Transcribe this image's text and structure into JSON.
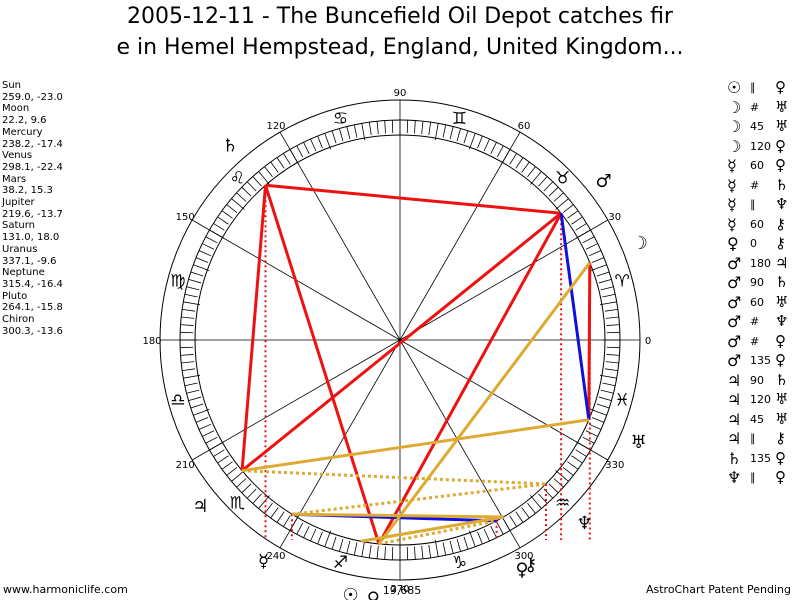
{
  "title": {
    "line1": "2005-12-11 - The Buncefield Oil Depot catches fir",
    "line2": "e in Hemel Hempstead, England, United Kingdom..."
  },
  "planets": [
    {
      "name": "Sun",
      "coords": "259.0, -23.0"
    },
    {
      "name": "Moon",
      "coords": "22.2, 9.6"
    },
    {
      "name": "Mercury",
      "coords": "238.2, -17.4"
    },
    {
      "name": "Venus",
      "coords": "298.1, -22.4"
    },
    {
      "name": "Mars",
      "coords": "38.2, 15.3"
    },
    {
      "name": "Jupiter",
      "coords": "219.6, -13.7"
    },
    {
      "name": "Saturn",
      "coords": "131.0, 18.0"
    },
    {
      "name": "Uranus",
      "coords": "337.1, -9.6"
    },
    {
      "name": "Neptune",
      "coords": "315.4, -16.4"
    },
    {
      "name": "Pluto",
      "coords": "264.1, -15.8"
    },
    {
      "name": "Chiron",
      "coords": "300.3, -13.6"
    }
  ],
  "aspects": [
    {
      "p1": "☉",
      "angle": "∥",
      "p2": "♀"
    },
    {
      "p1": "☽",
      "angle": "#",
      "p2": "♅"
    },
    {
      "p1": "☽",
      "angle": "45",
      "p2": "♅"
    },
    {
      "p1": "☽",
      "angle": "120",
      "p2": "♀"
    },
    {
      "p1": "☿",
      "angle": "60",
      "p2": "♀"
    },
    {
      "p1": "☿",
      "angle": "#",
      "p2": "♄"
    },
    {
      "p1": "☿",
      "angle": "∥",
      "p2": "♆"
    },
    {
      "p1": "☿",
      "angle": "60",
      "p2": "⚷"
    },
    {
      "p1": "♀",
      "angle": "0",
      "p2": "⚷"
    },
    {
      "p1": "♂",
      "angle": "180",
      "p2": "♃"
    },
    {
      "p1": "♂",
      "angle": "90",
      "p2": "♄"
    },
    {
      "p1": "♂",
      "angle": "60",
      "p2": "♅"
    },
    {
      "p1": "♂",
      "angle": "#",
      "p2": "♆"
    },
    {
      "p1": "♂",
      "angle": "#",
      "p2": "♀"
    },
    {
      "p1": "♂",
      "angle": "135",
      "p2": "♀"
    },
    {
      "p1": "♃",
      "angle": "90",
      "p2": "♄"
    },
    {
      "p1": "♃",
      "angle": "120",
      "p2": "♅"
    },
    {
      "p1": "♃",
      "angle": "45",
      "p2": "♅"
    },
    {
      "p1": "♃",
      "angle": "∥",
      "p2": "⚷"
    },
    {
      "p1": "♄",
      "angle": "135",
      "p2": "♀"
    },
    {
      "p1": "♆",
      "angle": "∥",
      "p2": "♀"
    }
  ],
  "wheel": {
    "degree_labels": [
      "0",
      "30",
      "60",
      "90",
      "120",
      "150",
      "180",
      "210",
      "240",
      "270",
      "300",
      "330"
    ],
    "zodiac_signs": [
      "♈",
      "♉",
      "♊",
      "♋",
      "♌",
      "♍",
      "♎",
      "♏",
      "♐",
      "♑",
      "♒",
      "♓"
    ],
    "lower_label": "19,685",
    "planet_glyphs": [
      {
        "glyph": "☉",
        "lon": 259.0
      },
      {
        "glyph": "☽",
        "lon": 22.2
      },
      {
        "glyph": "☿",
        "lon": 238.2
      },
      {
        "glyph": "♀",
        "lon": 298.1
      },
      {
        "glyph": "♂",
        "lon": 38.2
      },
      {
        "glyph": "♃",
        "lon": 219.6
      },
      {
        "glyph": "♄",
        "lon": 131.0
      },
      {
        "glyph": "♅",
        "lon": 337.1
      },
      {
        "glyph": "♆",
        "lon": 315.4
      },
      {
        "glyph": "♀",
        "lon": 264.1
      },
      {
        "glyph": "⚷",
        "lon": 300.3
      }
    ],
    "aspect_lines": [
      {
        "a": 38.2,
        "b": 219.6,
        "color": "#ee1111",
        "style": "solid"
      },
      {
        "a": 38.2,
        "b": 131.0,
        "color": "#ee1111",
        "style": "solid"
      },
      {
        "a": 131.0,
        "b": 219.6,
        "color": "#ee1111",
        "style": "solid"
      },
      {
        "a": 131.0,
        "b": 264.1,
        "color": "#ee1111",
        "style": "solid"
      },
      {
        "a": 38.2,
        "b": 264.1,
        "color": "#ee1111",
        "style": "solid"
      },
      {
        "a": 22.2,
        "b": 337.1,
        "color": "#ee1111",
        "style": "solid"
      },
      {
        "a": 38.2,
        "b": 337.1,
        "color": "#1111dd",
        "style": "solid"
      },
      {
        "a": 238.2,
        "b": 298.1,
        "color": "#1111dd",
        "style": "solid"
      },
      {
        "a": 219.6,
        "b": 337.1,
        "color": "#ddaa33",
        "style": "solid"
      },
      {
        "a": 22.2,
        "b": 264.1,
        "color": "#ddaa33",
        "style": "solid"
      },
      {
        "a": 238.2,
        "b": 300.3,
        "color": "#ddaa33",
        "style": "solid"
      },
      {
        "a": 259.0,
        "b": 300.3,
        "color": "#ddaa33",
        "style": "solid"
      },
      {
        "a": 219.6,
        "b": 315.4,
        "color": "#ddaa33",
        "style": "dotted"
      },
      {
        "a": 238.2,
        "b": 315.4,
        "color": "#ddaa33",
        "style": "dotted"
      },
      {
        "a": 264.1,
        "b": 298.1,
        "color": "#ddaa33",
        "style": "dotted"
      }
    ],
    "decl_lines": [
      {
        "lon": 131.0,
        "color": "#ee1111"
      },
      {
        "lon": 238.2,
        "color": "#ee1111"
      },
      {
        "lon": 22.2,
        "color": "#ee1111"
      },
      {
        "lon": 315.4,
        "color": "#ee1111"
      },
      {
        "lon": 38.2,
        "color": "#ee1111"
      },
      {
        "lon": 298.1,
        "color": "#ee1111"
      }
    ]
  },
  "footer": {
    "left": "www.harmoniclife.com",
    "right": "AstroChart Patent Pending"
  }
}
